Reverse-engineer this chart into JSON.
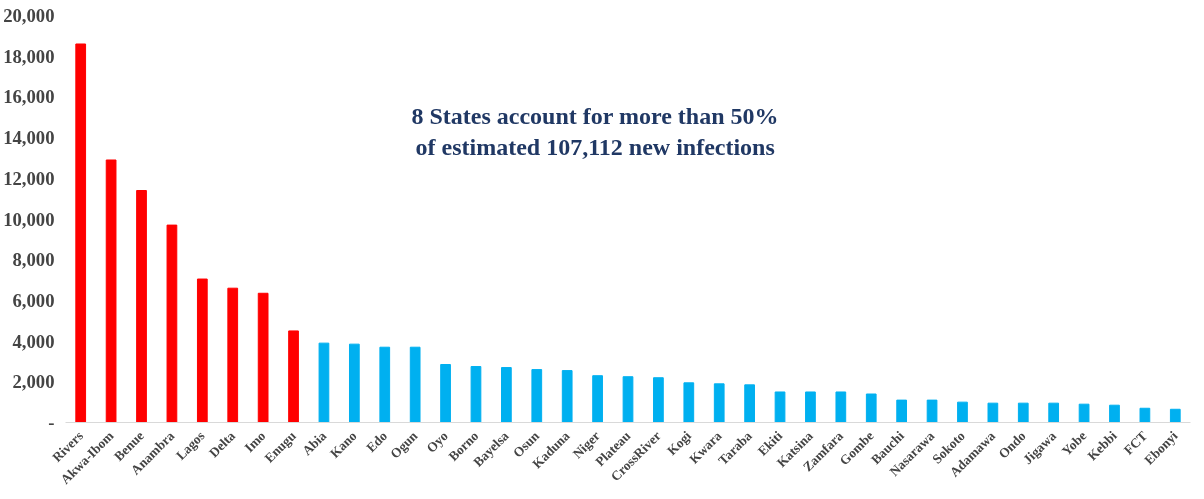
{
  "chart_data": {
    "type": "bar",
    "categories": [
      "Rivers",
      "Akwa-Ibom",
      "Benue",
      "Anambra",
      "Lagos",
      "Delta",
      "Imo",
      "Enugu",
      "Abia",
      "Kano",
      "Edo",
      "Ogun",
      "Oyo",
      "Borno",
      "Bayelsa",
      "Osun",
      "Kaduna",
      "Niger",
      "Plateau",
      "CrossRiver",
      "Kogi",
      "Kwara",
      "Taraba",
      "Ekiti",
      "Katsina",
      "Zamfara",
      "Gombe",
      "Bauchi",
      "Nasarawa",
      "Sokoto",
      "Adamawa",
      "Ondo",
      "Jigawa",
      "Yobe",
      "Kebbi",
      "FCT",
      "Ebonyi"
    ],
    "values": [
      18600,
      12900,
      11400,
      9700,
      7050,
      6600,
      6350,
      4500,
      3900,
      3850,
      3700,
      3700,
      2850,
      2750,
      2700,
      2600,
      2550,
      2300,
      2250,
      2200,
      1950,
      1900,
      1850,
      1500,
      1500,
      1500,
      1400,
      1100,
      1100,
      1000,
      950,
      950,
      950,
      900,
      850,
      700,
      650
    ],
    "colors": [
      "#ff0000",
      "#ff0000",
      "#ff0000",
      "#ff0000",
      "#ff0000",
      "#ff0000",
      "#ff0000",
      "#ff0000",
      "#00b0f0",
      "#00b0f0",
      "#00b0f0",
      "#00b0f0",
      "#00b0f0",
      "#00b0f0",
      "#00b0f0",
      "#00b0f0",
      "#00b0f0",
      "#00b0f0",
      "#00b0f0",
      "#00b0f0",
      "#00b0f0",
      "#00b0f0",
      "#00b0f0",
      "#00b0f0",
      "#00b0f0",
      "#00b0f0",
      "#00b0f0",
      "#00b0f0",
      "#00b0f0",
      "#00b0f0",
      "#00b0f0",
      "#00b0f0",
      "#00b0f0",
      "#00b0f0",
      "#00b0f0",
      "#00b0f0",
      "#00b0f0"
    ],
    "ylim": [
      0,
      20000
    ],
    "yticks": [
      {
        "value": 0,
        "label": "-"
      },
      {
        "value": 2000,
        "label": "2,000"
      },
      {
        "value": 4000,
        "label": "4,000"
      },
      {
        "value": 6000,
        "label": "6,000"
      },
      {
        "value": 8000,
        "label": "8,000"
      },
      {
        "value": 10000,
        "label": "10,000"
      },
      {
        "value": 12000,
        "label": "12,000"
      },
      {
        "value": 14000,
        "label": "14,000"
      },
      {
        "value": 16000,
        "label": "16,000"
      },
      {
        "value": 18000,
        "label": "18,000"
      },
      {
        "value": 20000,
        "label": "20,000"
      }
    ],
    "annotations": [
      "8 States account for more than 50% of estimated 107,112 new infections"
    ],
    "grid": false
  }
}
